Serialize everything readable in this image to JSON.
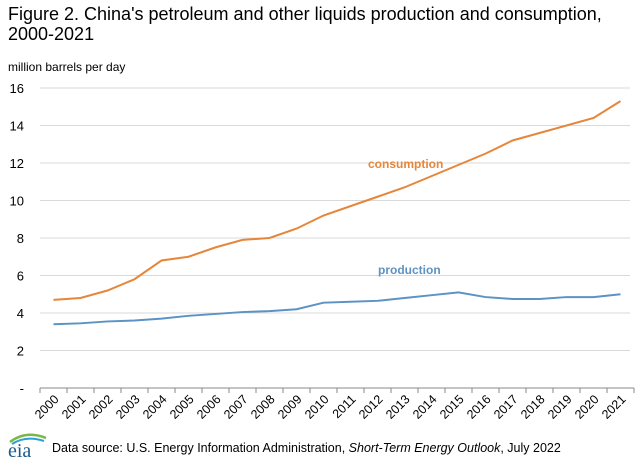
{
  "chart_data": {
    "type": "line",
    "title": "Figure 2. China's petroleum and other liquids production and consumption, 2000-2021",
    "ylabel": "million barrels per day",
    "xlabel": "",
    "ylim": [
      0,
      16
    ],
    "yticks": [
      "-",
      "2",
      "4",
      "6",
      "8",
      "10",
      "12",
      "14",
      "16"
    ],
    "grid": true,
    "categories": [
      "2000",
      "2001",
      "2002",
      "2003",
      "2004",
      "2005",
      "2006",
      "2007",
      "2008",
      "2009",
      "2010",
      "2011",
      "2012",
      "2013",
      "2014",
      "2015",
      "2016",
      "2017",
      "2018",
      "2019",
      "2020",
      "2021"
    ],
    "series": [
      {
        "name": "consumption",
        "color": "#e5863a",
        "values": [
          4.7,
          4.8,
          5.2,
          5.8,
          6.8,
          7.0,
          7.5,
          7.9,
          8.0,
          8.5,
          9.2,
          9.7,
          10.2,
          10.7,
          11.3,
          11.9,
          12.5,
          13.2,
          13.6,
          14.0,
          14.4,
          15.3
        ]
      },
      {
        "name": "production",
        "color": "#5b93c4",
        "values": [
          3.4,
          3.45,
          3.55,
          3.6,
          3.7,
          3.85,
          3.95,
          4.05,
          4.1,
          4.2,
          4.55,
          4.6,
          4.65,
          4.8,
          4.95,
          5.1,
          4.85,
          4.75,
          4.75,
          4.85,
          4.85,
          5.0
        ]
      }
    ]
  },
  "footer": {
    "logo": "eia",
    "source_prefix": "Data source: U.S. Energy Information Administration, ",
    "source_title": "Short-Term Energy Outlook",
    "source_suffix": ", July 2022"
  }
}
